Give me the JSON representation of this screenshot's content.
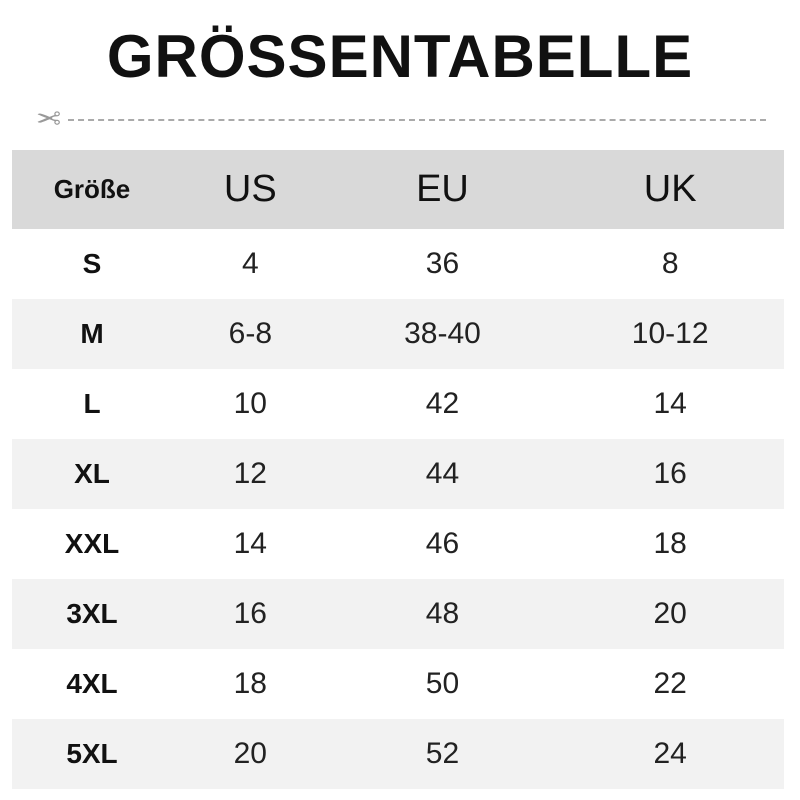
{
  "title": "GRÖSSENTABELLE",
  "cut_icon": "scissors-icon",
  "colors": {
    "header_bg": "#d9d9d9",
    "stripe_bg": "#f2f2f2",
    "dash": "#aaaaaa"
  },
  "table": {
    "headers": [
      "Größe",
      "US",
      "EU",
      "UK"
    ],
    "rows": [
      [
        "S",
        "4",
        "36",
        "8"
      ],
      [
        "M",
        "6-8",
        "38-40",
        "10-12"
      ],
      [
        "L",
        "10",
        "42",
        "14"
      ],
      [
        "XL",
        "12",
        "44",
        "16"
      ],
      [
        "XXL",
        "14",
        "46",
        "18"
      ],
      [
        "3XL",
        "16",
        "48",
        "20"
      ],
      [
        "4XL",
        "18",
        "50",
        "22"
      ],
      [
        "5XL",
        "20",
        "52",
        "24"
      ]
    ]
  }
}
